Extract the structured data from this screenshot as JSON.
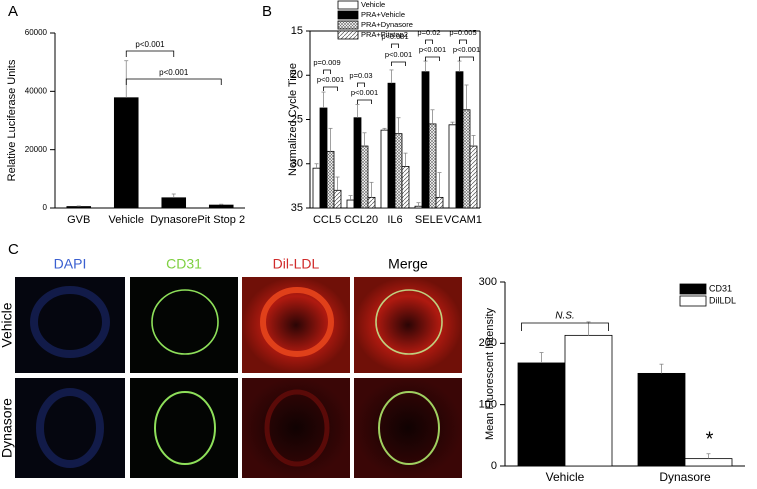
{
  "figure": {
    "panel_labels": [
      "A",
      "B",
      "C"
    ],
    "image_columns": [
      "DAPI",
      "CD31",
      "Dil-LDL",
      "Merge"
    ],
    "image_column_colors": [
      "#3a5fd0",
      "#7ed040",
      "#d02a2a",
      "#000000"
    ],
    "image_rows": [
      "Vehicle",
      "Dynasore"
    ]
  },
  "chart_data": [
    {
      "type": "bar",
      "ylabel": "Relative Luciferase Units",
      "categories": [
        "GVB",
        "Vehicle",
        "Dynasore",
        "Pit Stop 2"
      ],
      "values": [
        500,
        37800,
        3500,
        1000
      ],
      "errors": [
        200,
        12700,
        1300,
        300
      ],
      "color": "#000000",
      "ylim": [
        0,
        60000
      ],
      "yticks": [
        0,
        20000,
        40000,
        60000
      ],
      "annotations": [
        "p<0.001",
        "p<0.001"
      ]
    },
    {
      "type": "grouped_bar",
      "ylabel": "Normalized Cycle Time",
      "y_inverted": true,
      "categories": [
        "CCL5",
        "CCL20",
        "IL6",
        "SELE",
        "VCAM1"
      ],
      "series": [
        {
          "name": "Vehicle",
          "color": "#ffffff",
          "values": [
            30.5,
            34.1,
            26.2,
            34.8,
            25.6
          ],
          "errors": [
            0.5,
            0.5,
            0.2,
            0.4,
            0.3
          ]
        },
        {
          "name": "PRA+Vehicle",
          "color": "#000000",
          "values": [
            23.7,
            24.8,
            20.9,
            19.6,
            19.6
          ],
          "errors": [
            1.8,
            1.5,
            1.5,
            1.2,
            1.2
          ]
        },
        {
          "name": "PRA+Dynasore",
          "color": "#ffffff",
          "pattern": "dense",
          "values": [
            28.6,
            28.0,
            26.6,
            25.5,
            23.9
          ],
          "errors": [
            2.6,
            1.5,
            1.8,
            1.6,
            2.8
          ]
        },
        {
          "name": "PRA+Pitstop2",
          "color": "#ffffff",
          "pattern": "diagonal",
          "values": [
            33.0,
            33.8,
            30.3,
            33.8,
            28.0
          ],
          "errors": [
            1.5,
            1.7,
            1.5,
            2.8,
            1.2
          ]
        }
      ],
      "ylim": [
        15,
        35
      ],
      "yticks": [
        15,
        20,
        25,
        30,
        35
      ],
      "legend": "top",
      "annotations": [
        "p=0.009",
        "p<0.001",
        "p=0.03",
        "p<0.001",
        "p<0.001",
        "p<0.001",
        "p=0.02",
        "p<0.001",
        "p=0.005",
        "p<0.001"
      ]
    },
    {
      "type": "grouped_bar",
      "ylabel": "Mean Fluorescent Intensity",
      "categories": [
        "Vehicle",
        "Dynasore"
      ],
      "series": [
        {
          "name": "CD31",
          "color": "#000000",
          "values": [
            168,
            151
          ],
          "errors": [
            17,
            15
          ]
        },
        {
          "name": "DilLDL",
          "color": "#ffffff",
          "values": [
            213,
            12
          ],
          "errors": [
            22,
            8
          ]
        }
      ],
      "ylim": [
        0,
        300
      ],
      "yticks": [
        0,
        100,
        200,
        300
      ],
      "legend": "top-right",
      "annotations": [
        "N.S.",
        "*"
      ]
    }
  ]
}
